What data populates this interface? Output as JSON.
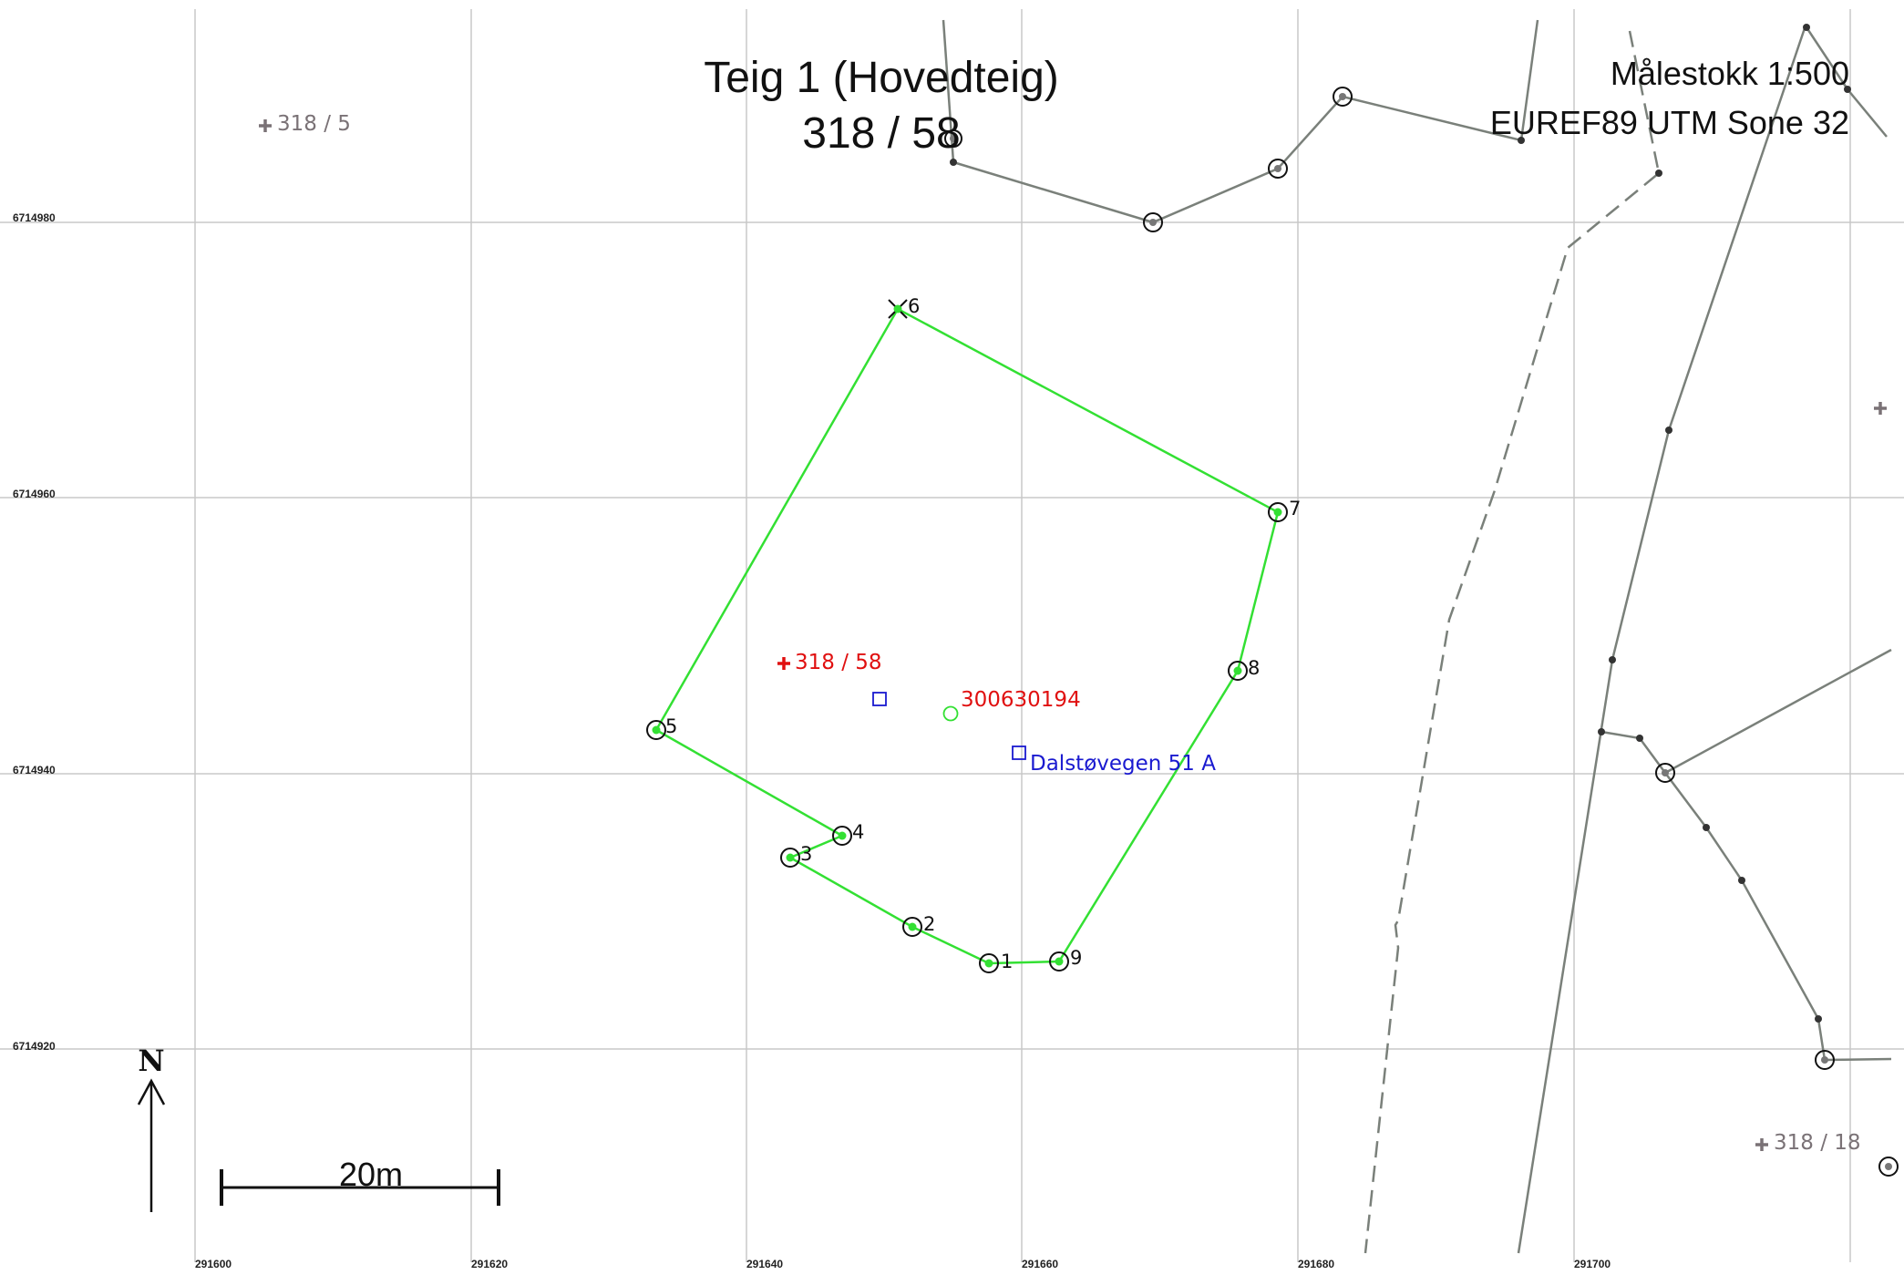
{
  "map": {
    "title_line1": "Teig 1 (Hovedteig)",
    "title_line2": "318 / 58",
    "scale_label": "Målestokk 1:500",
    "crs_label": "EUREF89 UTM Sone 32",
    "scale_bar_label": "20m",
    "north_label": "N"
  },
  "grid": {
    "easting_ticks": [
      "291600",
      "291620",
      "291640",
      "291660",
      "291680",
      "291700"
    ],
    "northing_ticks": [
      "6714980",
      "6714960",
      "6714940",
      "6714920"
    ]
  },
  "labels": {
    "main_parcel": "318 / 58",
    "building_id": "300630194",
    "address": "Dalstøvegen 51 A",
    "neighbor_nw": "318 / 5",
    "neighbor_se": "318 / 18"
  },
  "boundary_points": [
    "1",
    "2",
    "3",
    "4",
    "5",
    "6",
    "7",
    "8",
    "9"
  ],
  "colors": {
    "boundary": "#33e033",
    "grid": "#c8c8c8",
    "neighbor_lines": "#7a807a",
    "parcel_main": "#e01010",
    "address": "#1a1ad0",
    "neighbor_parcel": "#7a7276"
  }
}
